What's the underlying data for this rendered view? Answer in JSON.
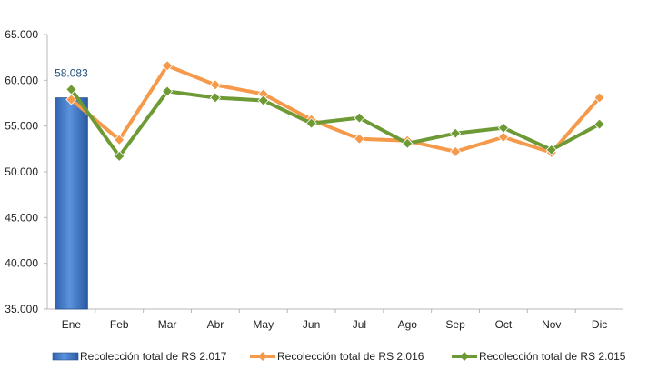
{
  "chart_data": {
    "type": "bar",
    "categories": [
      "Ene",
      "Feb",
      "Mar",
      "Abr",
      "May",
      "Jun",
      "Jul",
      "Ago",
      "Sep",
      "Oct",
      "Nov",
      "Dic"
    ],
    "ylim": [
      35000,
      65000
    ],
    "yticks": [
      35000,
      40000,
      45000,
      50000,
      55000,
      60000,
      65000
    ],
    "ytick_labels": [
      "35.000",
      "40.000",
      "45.000",
      "50.000",
      "55.000",
      "60.000",
      "65.000"
    ],
    "grid": false,
    "legend_position": "bottom",
    "bar_series": {
      "name": "Recolección total de RS 2.017",
      "values": [
        58083
      ],
      "data_labels": [
        "58.083"
      ],
      "color": "#3f78c8"
    },
    "series": [
      {
        "name": "Recolección total de RS 2.016",
        "type": "line",
        "marker": "diamond",
        "color": "#f49a4a",
        "values": [
          57900,
          53500,
          61600,
          59500,
          58500,
          55700,
          53600,
          53400,
          52200,
          53800,
          52100,
          58100
        ]
      },
      {
        "name": "Recolección total de RS 2.015",
        "type": "line",
        "marker": "diamond",
        "color": "#6e9a36",
        "values": [
          59000,
          51700,
          58800,
          58100,
          57800,
          55300,
          55900,
          53100,
          54200,
          54800,
          52400,
          55200
        ]
      }
    ],
    "legend": [
      {
        "label": "Recolección total de RS 2.017",
        "kind": "bar",
        "color": "#3f78c8"
      },
      {
        "label": "Recolección total de RS 2.016",
        "kind": "line",
        "color": "#f49a4a"
      },
      {
        "label": "Recolección total de RS 2.015",
        "kind": "line",
        "color": "#6e9a36"
      }
    ]
  }
}
